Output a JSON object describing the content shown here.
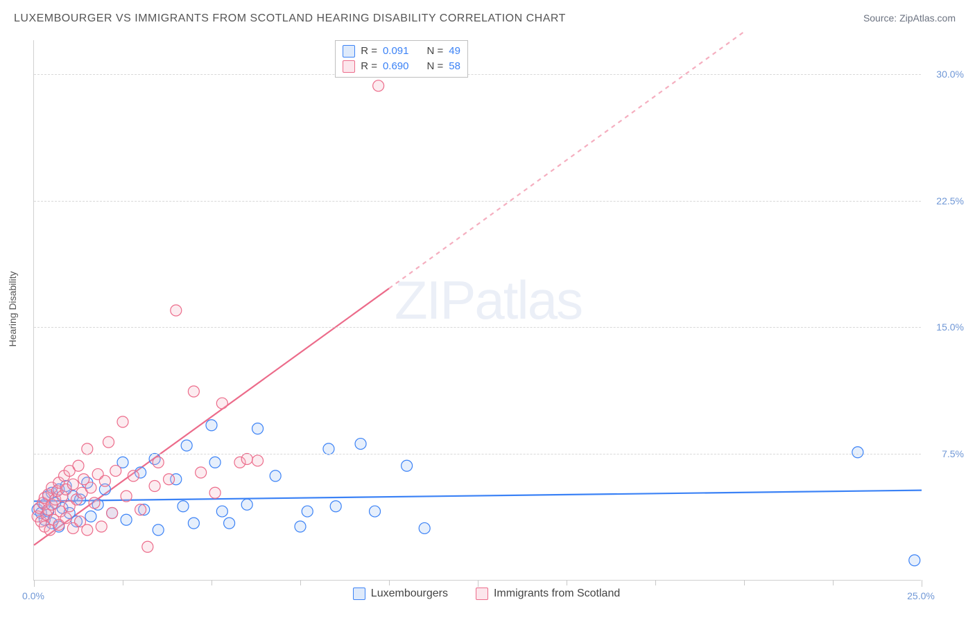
{
  "title": "LUXEMBOURGER VS IMMIGRANTS FROM SCOTLAND HEARING DISABILITY CORRELATION CHART",
  "source_label": "Source: ",
  "source_name": "ZipAtlas.com",
  "ylabel": "Hearing Disability",
  "watermark_a": "ZIP",
  "watermark_b": "atlas",
  "chart": {
    "type": "scatter",
    "background_color": "#ffffff",
    "grid_color": "#d8d8d8",
    "axis_color": "#d0d0d0",
    "tick_label_color": "#6f97d6",
    "xlim": [
      0,
      25
    ],
    "ylim": [
      0,
      32
    ],
    "yticks": [
      7.5,
      15.0,
      22.5,
      30.0
    ],
    "ytick_labels": [
      "7.5%",
      "15.0%",
      "22.5%",
      "30.0%"
    ],
    "xticks": [
      0,
      12.5,
      25.0
    ],
    "xtick_labels": [
      "0.0%",
      "",
      "25.0%"
    ],
    "x_minor_ticks": [
      2.5,
      5.0,
      7.5,
      10.0,
      15.0,
      17.5,
      20.0,
      22.5
    ],
    "marker_radius": 8,
    "marker_stroke_width": 1.2,
    "marker_fill_opacity": 0.25,
    "series": [
      {
        "id": "luxembourgers",
        "label": "Luxembourgers",
        "color_stroke": "#3b82f6",
        "color_fill": "#9dc1f2",
        "R": "0.091",
        "N": "49",
        "trend": {
          "slope": 0.026,
          "intercept": 4.7,
          "x0": 0,
          "x1": 25,
          "stroke_width": 2.2,
          "dash_after_x": 25
        },
        "points": [
          [
            0.1,
            4.2
          ],
          [
            0.2,
            4.0
          ],
          [
            0.3,
            4.5
          ],
          [
            0.3,
            3.6
          ],
          [
            0.4,
            5.0
          ],
          [
            0.4,
            4.1
          ],
          [
            0.5,
            5.2
          ],
          [
            0.5,
            3.4
          ],
          [
            0.6,
            4.6
          ],
          [
            0.7,
            5.4
          ],
          [
            0.7,
            3.2
          ],
          [
            0.8,
            4.3
          ],
          [
            0.9,
            5.6
          ],
          [
            1.0,
            4.0
          ],
          [
            1.1,
            5.0
          ],
          [
            1.2,
            3.5
          ],
          [
            1.3,
            4.8
          ],
          [
            1.5,
            5.8
          ],
          [
            1.6,
            3.8
          ],
          [
            1.8,
            4.5
          ],
          [
            2.0,
            5.4
          ],
          [
            2.2,
            4.0
          ],
          [
            2.5,
            7.0
          ],
          [
            2.6,
            3.6
          ],
          [
            3.0,
            6.4
          ],
          [
            3.1,
            4.2
          ],
          [
            3.4,
            7.2
          ],
          [
            3.5,
            3.0
          ],
          [
            4.0,
            6.0
          ],
          [
            4.2,
            4.4
          ],
          [
            4.3,
            8.0
          ],
          [
            4.5,
            3.4
          ],
          [
            5.0,
            9.2
          ],
          [
            5.1,
            7.0
          ],
          [
            5.3,
            4.1
          ],
          [
            5.5,
            3.4
          ],
          [
            6.0,
            4.5
          ],
          [
            6.3,
            9.0
          ],
          [
            6.8,
            6.2
          ],
          [
            7.5,
            3.2
          ],
          [
            7.7,
            4.1
          ],
          [
            8.3,
            7.8
          ],
          [
            8.5,
            4.4
          ],
          [
            9.2,
            8.1
          ],
          [
            9.6,
            4.1
          ],
          [
            10.5,
            6.8
          ],
          [
            11.0,
            3.1
          ],
          [
            23.2,
            7.6
          ],
          [
            24.8,
            1.2
          ]
        ]
      },
      {
        "id": "scotland",
        "label": "Immigrants from Scotland",
        "color_stroke": "#ec6b8a",
        "color_fill": "#f5b5c5",
        "R": "0.690",
        "N": "58",
        "trend": {
          "slope": 1.52,
          "intercept": 2.1,
          "x0": 0,
          "x1": 20,
          "stroke_width": 2.2,
          "dash_after_x": 10
        },
        "points": [
          [
            0.1,
            3.8
          ],
          [
            0.15,
            4.3
          ],
          [
            0.2,
            3.5
          ],
          [
            0.25,
            4.6
          ],
          [
            0.3,
            3.2
          ],
          [
            0.3,
            4.9
          ],
          [
            0.35,
            3.9
          ],
          [
            0.4,
            4.2
          ],
          [
            0.4,
            5.1
          ],
          [
            0.45,
            3.0
          ],
          [
            0.5,
            4.5
          ],
          [
            0.5,
            5.5
          ],
          [
            0.55,
            3.6
          ],
          [
            0.6,
            4.8
          ],
          [
            0.65,
            5.3
          ],
          [
            0.7,
            3.3
          ],
          [
            0.7,
            5.8
          ],
          [
            0.75,
            4.1
          ],
          [
            0.8,
            5.0
          ],
          [
            0.85,
            6.2
          ],
          [
            0.9,
            3.7
          ],
          [
            0.9,
            5.4
          ],
          [
            1.0,
            4.4
          ],
          [
            1.0,
            6.5
          ],
          [
            1.1,
            3.1
          ],
          [
            1.1,
            5.7
          ],
          [
            1.2,
            4.8
          ],
          [
            1.25,
            6.8
          ],
          [
            1.3,
            3.5
          ],
          [
            1.35,
            5.2
          ],
          [
            1.4,
            6.0
          ],
          [
            1.5,
            7.8
          ],
          [
            1.5,
            3.0
          ],
          [
            1.6,
            5.5
          ],
          [
            1.7,
            4.6
          ],
          [
            1.8,
            6.3
          ],
          [
            1.9,
            3.2
          ],
          [
            2.0,
            5.9
          ],
          [
            2.1,
            8.2
          ],
          [
            2.2,
            4.0
          ],
          [
            2.3,
            6.5
          ],
          [
            2.5,
            9.4
          ],
          [
            2.6,
            5.0
          ],
          [
            2.8,
            6.2
          ],
          [
            3.0,
            4.2
          ],
          [
            3.2,
            2.0
          ],
          [
            3.4,
            5.6
          ],
          [
            3.5,
            7.0
          ],
          [
            3.8,
            6.0
          ],
          [
            4.0,
            16.0
          ],
          [
            4.5,
            11.2
          ],
          [
            4.7,
            6.4
          ],
          [
            5.1,
            5.2
          ],
          [
            5.3,
            10.5
          ],
          [
            5.8,
            7.0
          ],
          [
            6.0,
            7.2
          ],
          [
            6.3,
            7.1
          ],
          [
            9.7,
            29.3
          ]
        ]
      }
    ]
  },
  "legend_top": {
    "R_label": "R =",
    "N_label": "N =",
    "border_color": "#bfbfbf"
  },
  "legend_bottom": {
    "items": [
      "Luxembourgers",
      "Immigrants from Scotland"
    ]
  }
}
